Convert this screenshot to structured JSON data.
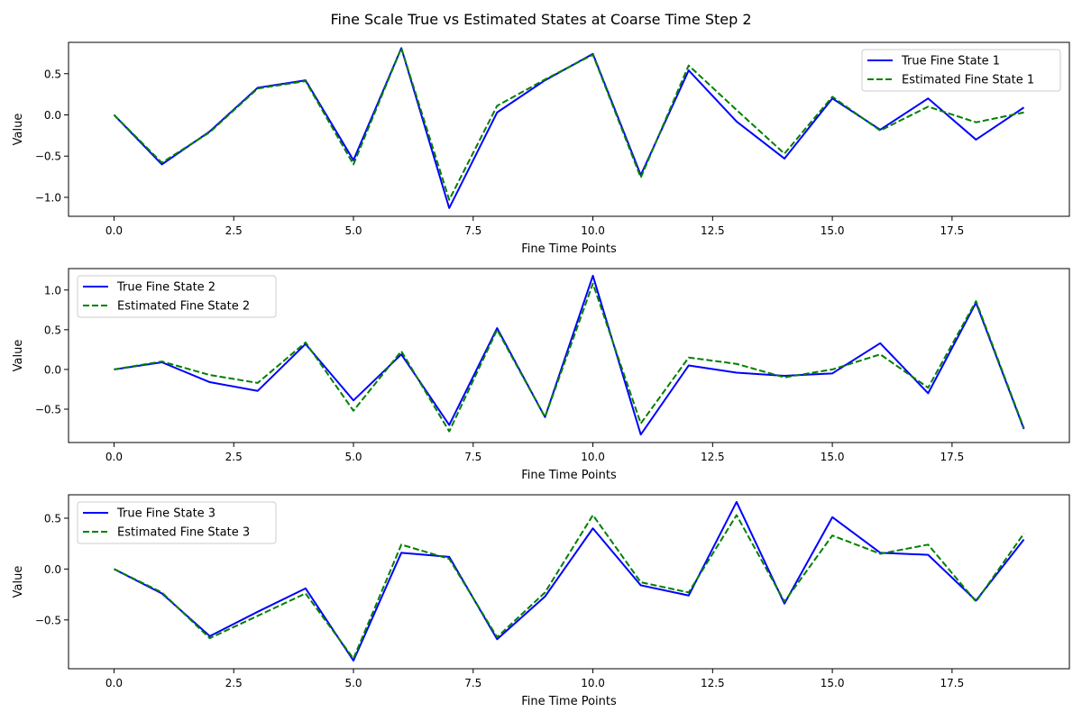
{
  "figure": {
    "title": "Fine Scale True vs Estimated States at Coarse Time Step 2"
  },
  "colors": {
    "true_line": "#0000ff",
    "estimated_line": "#008000",
    "axes": "#000000",
    "legend_border": "#cccccc"
  },
  "chart_data": [
    {
      "type": "line",
      "xlabel": "Fine Time Points",
      "ylabel": "Value",
      "xlim": [
        -0.95,
        19.95
      ],
      "ylim": [
        -1.23,
        0.88
      ],
      "xticks": [
        0,
        2.5,
        5,
        7.5,
        10,
        12.5,
        15,
        17.5
      ],
      "xtick_labels": [
        "0.0",
        "2.5",
        "5.0",
        "7.5",
        "10.0",
        "12.5",
        "15.0",
        "17.5"
      ],
      "yticks": [
        -1.0,
        -0.5,
        0.0,
        0.5
      ],
      "ytick_labels": [
        "−1.0",
        "−0.5",
        "0.0",
        "0.5"
      ],
      "grid": false,
      "legend_position": "top-right",
      "x": [
        0,
        1,
        2,
        3,
        4,
        5,
        6,
        7,
        8,
        9,
        10,
        11,
        12,
        13,
        14,
        15,
        16,
        17,
        18,
        19
      ],
      "series": [
        {
          "name": "True Fine State 1",
          "style": "solid",
          "values": [
            0.0,
            -0.6,
            -0.2,
            0.33,
            0.42,
            -0.55,
            0.81,
            -1.13,
            0.03,
            0.42,
            0.74,
            -0.73,
            0.54,
            -0.08,
            -0.53,
            0.2,
            -0.18,
            0.2,
            -0.3,
            0.09
          ]
        },
        {
          "name": "Estimated Fine State 1",
          "style": "dashed",
          "values": [
            0.0,
            -0.58,
            -0.21,
            0.32,
            0.41,
            -0.6,
            0.81,
            -1.03,
            0.11,
            0.43,
            0.73,
            -0.76,
            0.6,
            0.06,
            -0.47,
            0.22,
            -0.19,
            0.1,
            -0.09,
            0.03
          ]
        }
      ]
    },
    {
      "type": "line",
      "xlabel": "Fine Time Points",
      "ylabel": "Value",
      "xlim": [
        -0.95,
        19.95
      ],
      "ylim": [
        -0.92,
        1.27
      ],
      "xticks": [
        0,
        2.5,
        5,
        7.5,
        10,
        12.5,
        15,
        17.5
      ],
      "xtick_labels": [
        "0.0",
        "2.5",
        "5.0",
        "7.5",
        "10.0",
        "12.5",
        "15.0",
        "17.5"
      ],
      "yticks": [
        -0.5,
        0.0,
        0.5,
        1.0
      ],
      "ytick_labels": [
        "−0.5",
        "0.0",
        "0.5",
        "1.0"
      ],
      "grid": false,
      "legend_position": "top-left",
      "x": [
        0,
        1,
        2,
        3,
        4,
        5,
        6,
        7,
        8,
        9,
        10,
        11,
        12,
        13,
        14,
        15,
        16,
        17,
        18,
        19
      ],
      "series": [
        {
          "name": "True Fine State 2",
          "style": "solid",
          "values": [
            0.0,
            0.09,
            -0.16,
            -0.27,
            0.32,
            -0.39,
            0.19,
            -0.7,
            0.52,
            -0.6,
            1.18,
            -0.82,
            0.05,
            -0.04,
            -0.08,
            -0.05,
            0.33,
            -0.3,
            0.84,
            -0.75
          ]
        },
        {
          "name": "Estimated Fine State 2",
          "style": "dashed",
          "values": [
            0.0,
            0.1,
            -0.07,
            -0.17,
            0.34,
            -0.52,
            0.23,
            -0.78,
            0.5,
            -0.6,
            1.08,
            -0.68,
            0.15,
            0.07,
            -0.1,
            0.0,
            0.19,
            -0.23,
            0.86,
            -0.74
          ]
        }
      ]
    },
    {
      "type": "line",
      "xlabel": "Fine Time Points",
      "ylabel": "Value",
      "xlim": [
        -0.95,
        19.95
      ],
      "ylim": [
        -0.98,
        0.73
      ],
      "xticks": [
        0,
        2.5,
        5,
        7.5,
        10,
        12.5,
        15,
        17.5
      ],
      "xtick_labels": [
        "0.0",
        "2.5",
        "5.0",
        "7.5",
        "10.0",
        "12.5",
        "15.0",
        "17.5"
      ],
      "yticks": [
        -0.5,
        0.0,
        0.5
      ],
      "ytick_labels": [
        "−0.5",
        "0.0",
        "0.5"
      ],
      "grid": false,
      "legend_position": "top-left",
      "x": [
        0,
        1,
        2,
        3,
        4,
        5,
        6,
        7,
        8,
        9,
        10,
        11,
        12,
        13,
        14,
        15,
        16,
        17,
        18,
        19
      ],
      "series": [
        {
          "name": "True Fine State 3",
          "style": "solid",
          "values": [
            0.0,
            -0.24,
            -0.66,
            -0.42,
            -0.19,
            -0.9,
            0.16,
            0.12,
            -0.69,
            -0.27,
            0.4,
            -0.16,
            -0.26,
            0.66,
            -0.34,
            0.51,
            0.16,
            0.14,
            -0.31,
            0.29
          ]
        },
        {
          "name": "Estimated Fine State 3",
          "style": "dashed",
          "values": [
            0.0,
            -0.23,
            -0.68,
            -0.46,
            -0.24,
            -0.88,
            0.24,
            0.1,
            -0.67,
            -0.23,
            0.53,
            -0.13,
            -0.23,
            0.53,
            -0.32,
            0.33,
            0.15,
            0.24,
            -0.32,
            0.35
          ]
        }
      ]
    }
  ]
}
